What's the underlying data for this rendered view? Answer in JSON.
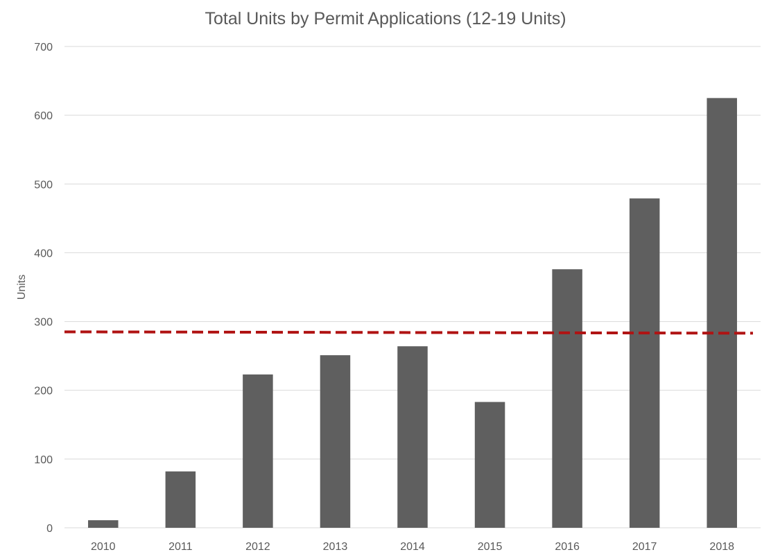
{
  "chart_data": {
    "type": "bar",
    "title": "Total Units by Permit Applications (12-19 Units)",
    "xlabel": "",
    "ylabel": "Units",
    "categories": [
      "2010",
      "2011",
      "2012",
      "2013",
      "2014",
      "2015",
      "2016",
      "2017",
      "2018"
    ],
    "series": [
      {
        "values": [
          11,
          82,
          223,
          251,
          264,
          183,
          376,
          479,
          625
        ]
      }
    ],
    "reference_line": {
      "start_value": 285,
      "end_value": 283,
      "style": "dashed"
    },
    "ylim": [
      0,
      700
    ],
    "yticks": [
      0,
      100,
      200,
      300,
      400,
      500,
      600,
      700
    ],
    "grid": true,
    "legend": "none",
    "colors": {
      "bar": "#5f5f5f",
      "reference_line": "#b01313",
      "text": "#595959",
      "grid": "#d9d9d9"
    }
  }
}
